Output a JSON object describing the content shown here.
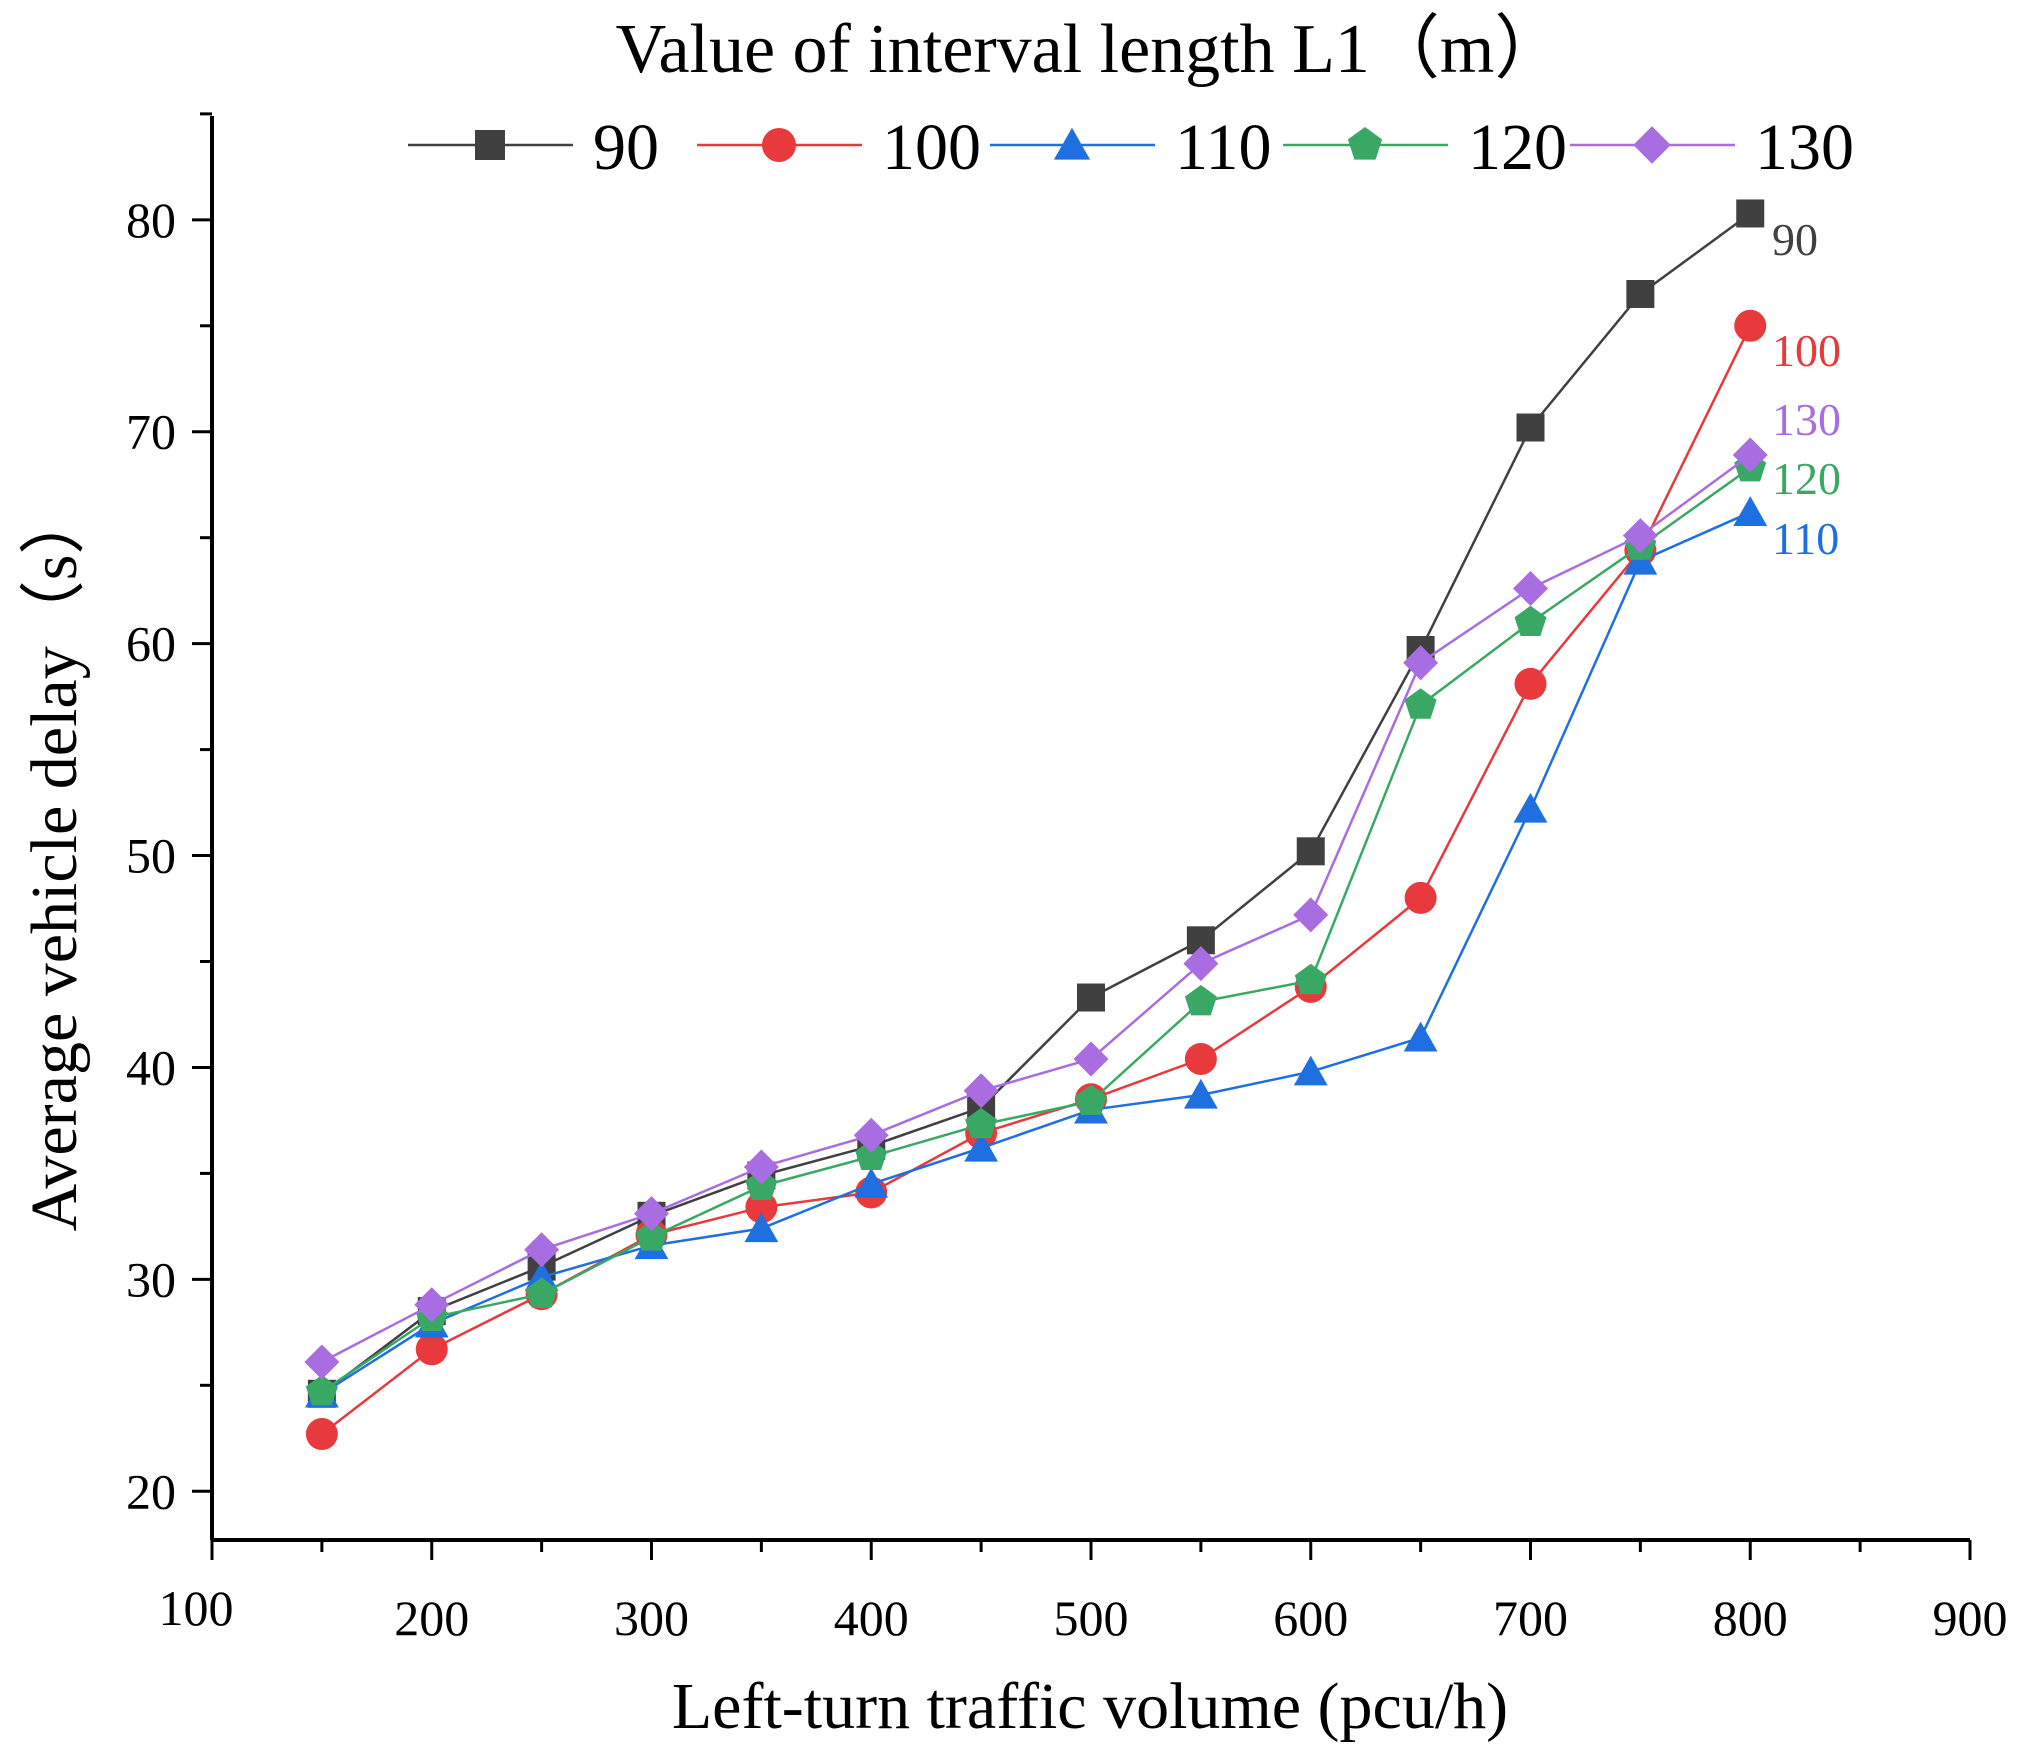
{
  "chart_data": {
    "type": "line",
    "title": "Value of interval length L1（m）",
    "xlabel": "Left-turn traffic volume (pcu/h)",
    "ylabel": "Average vehicle delay（s）",
    "xlim": [
      100,
      900
    ],
    "ylim": [
      17.7,
      84.9
    ],
    "xticks": [
      100,
      200,
      300,
      400,
      500,
      600,
      700,
      800,
      900
    ],
    "yticks": [
      20,
      30,
      40,
      50,
      60,
      70,
      80
    ],
    "legend_position": "top",
    "x": [
      150,
      200,
      250,
      300,
      350,
      400,
      450,
      500,
      550,
      600,
      650,
      700,
      750,
      800
    ],
    "series": [
      {
        "name": "90",
        "marker": "square",
        "color": "#404040",
        "end_label": "90",
        "values": [
          24.6,
          28.5,
          30.6,
          33.0,
          34.9,
          36.3,
          38.1,
          43.3,
          46.0,
          50.2,
          59.7,
          70.2,
          76.5,
          80.3
        ]
      },
      {
        "name": "100",
        "marker": "circle",
        "color": "#e8393d",
        "end_label": "100",
        "values": [
          22.7,
          26.7,
          29.3,
          32.1,
          33.4,
          34.1,
          36.9,
          38.5,
          40.4,
          43.8,
          48.0,
          58.1,
          64.4,
          75.0
        ]
      },
      {
        "name": "110",
        "marker": "triangle",
        "color": "#1e6fe0",
        "end_label": "110",
        "values": [
          24.6,
          27.9,
          30.1,
          31.6,
          32.4,
          34.5,
          36.2,
          38.0,
          38.7,
          39.8,
          41.4,
          52.2,
          63.9,
          66.2
        ]
      },
      {
        "name": "120",
        "marker": "pentagon",
        "color": "#3aa865",
        "end_label": "120",
        "values": [
          24.7,
          28.2,
          29.3,
          32.0,
          34.4,
          35.8,
          37.3,
          38.4,
          43.1,
          44.1,
          57.1,
          61.0,
          64.6,
          68.3
        ]
      },
      {
        "name": "130",
        "marker": "diamond",
        "color": "#a86de0",
        "end_label": "130",
        "values": [
          26.1,
          28.8,
          31.4,
          33.1,
          35.3,
          36.8,
          38.9,
          40.4,
          44.9,
          47.2,
          59.1,
          62.6,
          65.1,
          68.9
        ]
      }
    ]
  }
}
